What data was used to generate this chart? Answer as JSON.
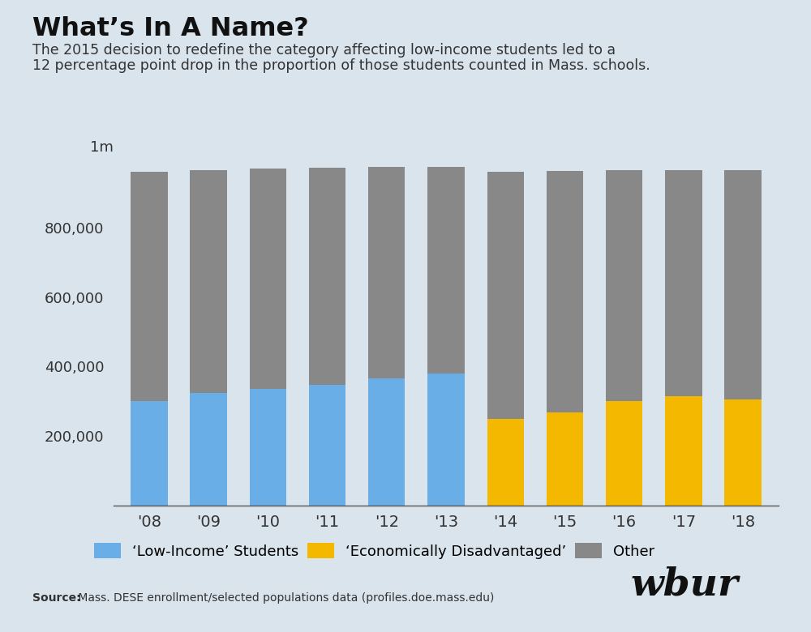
{
  "years": [
    "'08",
    "'09",
    "'10",
    "'11",
    "'12",
    "'13",
    "'14",
    "'15",
    "'16",
    "'17",
    "'18"
  ],
  "low_income": [
    300000,
    325000,
    335000,
    347000,
    366000,
    380000,
    0,
    0,
    0,
    0,
    0
  ],
  "econ_disadv": [
    0,
    0,
    0,
    0,
    0,
    0,
    250000,
    267000,
    300000,
    315000,
    305000
  ],
  "other": [
    660000,
    640000,
    635000,
    625000,
    608000,
    595000,
    710000,
    695000,
    665000,
    650000,
    660000
  ],
  "color_low_income": "#6aaee8",
  "color_econ_disadv": "#f5b800",
  "color_other": "#888888",
  "bg_color": "#d9e4ed",
  "title": "What’s In A Name?",
  "subtitle_line1": "The 2015 decision to redefine the category affecting low-income students led to a",
  "subtitle_line2": "12 percentage point drop in the proportion of those students counted in Mass. schools.",
  "legend_low_income": "‘Low-Income’ Students",
  "legend_econ_disadv": "‘Economically Disadvantaged’",
  "legend_other": "Other",
  "source_bold": "Source:",
  "source_rest": " Mass. DESE enrollment/selected populations data (profiles.doe.mass.edu)",
  "ylabel_top": "1m",
  "ylim": [
    0,
    1000000
  ],
  "yticks": [
    0,
    200000,
    400000,
    600000,
    800000
  ],
  "ytick_labels": [
    "",
    "200,000",
    "400,000",
    "600,000",
    "800,000"
  ]
}
